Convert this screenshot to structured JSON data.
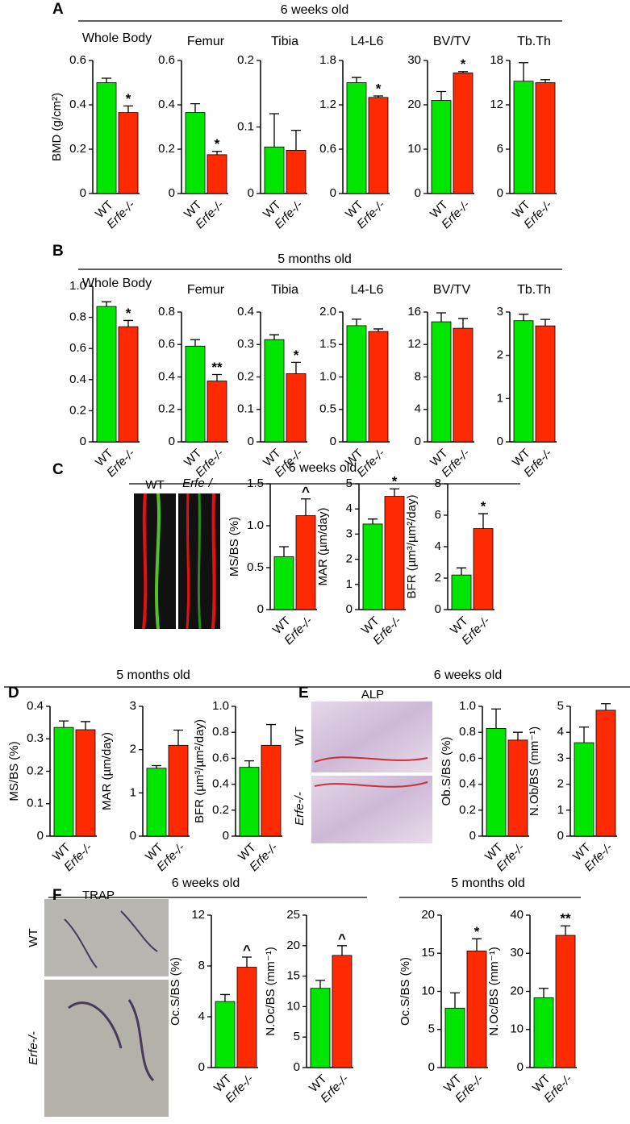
{
  "panels": [
    {
      "label": "A",
      "headings": [
        "6 weeks old"
      ]
    },
    {
      "label": "B",
      "headings": [
        "5 months old"
      ]
    },
    {
      "label": "C",
      "headings": [
        "6 weeks old"
      ]
    },
    {
      "label": "D",
      "headings": [
        "5 months old"
      ]
    },
    {
      "label": "E",
      "headings": [
        "6 weeks old"
      ]
    },
    {
      "label": "F",
      "headings": [
        "6 weeks old",
        "5 months old"
      ]
    }
  ],
  "micrographs": {
    "C": {
      "labels": [
        "WT",
        "Erfe-/-"
      ]
    },
    "E": {
      "title": "ALP",
      "labels": [
        "WT",
        "Erfe-/-"
      ]
    },
    "F": {
      "title": "TRAP",
      "labels": [
        "WT",
        "Erfe-/-"
      ]
    }
  },
  "chart_data": [
    {
      "type": "bar",
      "title": "Whole Body",
      "ylabel": "BMD (g/cm²)",
      "categories": [
        "WT",
        "Erfe-/-"
      ],
      "values": [
        0.5,
        0.365
      ],
      "errors": [
        0.02,
        0.03
      ],
      "annotations": [
        null,
        "*"
      ],
      "colors": [
        "#00e600",
        "#ff2a00"
      ],
      "ylim": [
        0,
        0.6
      ],
      "yticks": [
        0,
        0.2,
        0.4,
        0.6
      ]
    },
    {
      "type": "bar",
      "title": "Femur",
      "categories": [
        "WT",
        "Erfe-/-"
      ],
      "values": [
        0.365,
        0.175
      ],
      "errors": [
        0.04,
        0.015
      ],
      "annotations": [
        null,
        "*"
      ],
      "colors": [
        "#00e600",
        "#ff2a00"
      ],
      "ylim": [
        0,
        0.6
      ],
      "yticks": [
        0,
        0.2,
        0.4,
        0.6
      ]
    },
    {
      "type": "bar",
      "title": "Tibia",
      "categories": [
        "WT",
        "Erfe-/-"
      ],
      "values": [
        0.07,
        0.065
      ],
      "errors": [
        0.05,
        0.03
      ],
      "annotations": [
        null,
        null
      ],
      "colors": [
        "#00e600",
        "#ff2a00"
      ],
      "ylim": [
        0,
        0.2
      ],
      "yticks": [
        0,
        0.1,
        0.2
      ]
    },
    {
      "type": "bar",
      "title": "L4-L6",
      "categories": [
        "WT",
        "Erfe-/-"
      ],
      "values": [
        1.5,
        1.3
      ],
      "errors": [
        0.07,
        0.02
      ],
      "annotations": [
        null,
        "*"
      ],
      "colors": [
        "#00e600",
        "#ff2a00"
      ],
      "ylim": [
        0,
        1.8
      ],
      "yticks": [
        0,
        0.6,
        1.2,
        1.8
      ]
    },
    {
      "type": "bar",
      "title": "BV/TV",
      "categories": [
        "WT",
        "Erfe-/-"
      ],
      "values": [
        21,
        27.2
      ],
      "errors": [
        2,
        0.3
      ],
      "annotations": [
        null,
        "*"
      ],
      "colors": [
        "#00e600",
        "#ff2a00"
      ],
      "ylim": [
        0,
        30
      ],
      "yticks": [
        0,
        10,
        20,
        30
      ]
    },
    {
      "type": "bar",
      "title": "Tb.Th",
      "categories": [
        "WT",
        "Erfe-/-"
      ],
      "values": [
        15.2,
        15
      ],
      "errors": [
        2.5,
        0.4
      ],
      "annotations": [
        null,
        null
      ],
      "colors": [
        "#00e600",
        "#ff2a00"
      ],
      "ylim": [
        0,
        18
      ],
      "yticks": [
        0,
        6,
        12,
        18
      ]
    },
    {
      "type": "bar",
      "title": "Whole Body",
      "categories": [
        "WT",
        "Erfe-/-"
      ],
      "values": [
        0.87,
        0.74
      ],
      "errors": [
        0.03,
        0.04
      ],
      "annotations": [
        null,
        "*"
      ],
      "colors": [
        "#00e600",
        "#ff2a00"
      ],
      "ylim": [
        0,
        1
      ],
      "yticks": [
        0,
        0.2,
        0.4,
        0.6,
        0.8,
        {
          "value": 1,
          "label": "1.0"
        }
      ]
    },
    {
      "type": "bar",
      "title": "Femur",
      "categories": [
        "WT",
        "Erfe-/-"
      ],
      "values": [
        0.59,
        0.375
      ],
      "errors": [
        0.04,
        0.04
      ],
      "annotations": [
        null,
        "**"
      ],
      "colors": [
        "#00e600",
        "#ff2a00"
      ],
      "ylim": [
        0,
        0.8
      ],
      "yticks": [
        0,
        0.2,
        0.4,
        0.6,
        0.8
      ]
    },
    {
      "type": "bar",
      "title": "Tibia",
      "categories": [
        "WT",
        "Erfe-/-"
      ],
      "values": [
        0.315,
        0.21
      ],
      "errors": [
        0.015,
        0.035
      ],
      "annotations": [
        null,
        "*"
      ],
      "colors": [
        "#00e600",
        "#ff2a00"
      ],
      "ylim": [
        0,
        0.4
      ],
      "yticks": [
        0,
        0.1,
        0.2,
        0.3,
        0.4
      ]
    },
    {
      "type": "bar",
      "title": "L4-L6",
      "categories": [
        "WT",
        "Erfe-/-"
      ],
      "values": [
        1.79,
        1.7
      ],
      "errors": [
        0.1,
        0.04
      ],
      "annotations": [
        null,
        null
      ],
      "colors": [
        "#00e600",
        "#ff2a00"
      ],
      "ylim": [
        0,
        2
      ],
      "yticks": [
        0,
        0.5,
        {
          "value": 1,
          "label": "1.0"
        },
        1.5,
        {
          "value": 2,
          "label": "2.0"
        }
      ]
    },
    {
      "type": "bar",
      "title": "BV/TV",
      "categories": [
        "WT",
        "Erfe-/-"
      ],
      "values": [
        14.8,
        14
      ],
      "errors": [
        1.1,
        1.2
      ],
      "annotations": [
        null,
        null
      ],
      "colors": [
        "#00e600",
        "#ff2a00"
      ],
      "ylim": [
        0,
        16
      ],
      "yticks": [
        0,
        4,
        8,
        12,
        16
      ]
    },
    {
      "type": "bar",
      "title": "Tb.Th",
      "categories": [
        "WT",
        "Erfe-/-"
      ],
      "values": [
        2.8,
        2.68
      ],
      "errors": [
        0.15,
        0.15
      ],
      "annotations": [
        null,
        null
      ],
      "colors": [
        "#00e600",
        "#ff2a00"
      ],
      "ylim": [
        0,
        3
      ],
      "yticks": [
        0,
        1,
        2,
        3
      ]
    },
    {
      "type": "bar",
      "ylabel": "MS/BS (%)",
      "categories": [
        "WT",
        "Erfe-/-"
      ],
      "values": [
        0.63,
        1.12
      ],
      "errors": [
        0.12,
        0.2
      ],
      "annotations": [
        null,
        "^"
      ],
      "colors": [
        "#00e600",
        "#ff2a00"
      ],
      "ylim": [
        0,
        1.5
      ],
      "yticks": [
        0,
        0.5,
        {
          "value": 1,
          "label": "1.0"
        },
        1.5
      ]
    },
    {
      "type": "bar",
      "ylabel": "MAR (µm/day)",
      "categories": [
        "WT",
        "Erfe-/-"
      ],
      "values": [
        3.4,
        4.5
      ],
      "errors": [
        0.2,
        0.3
      ],
      "annotations": [
        null,
        "*"
      ],
      "colors": [
        "#00e600",
        "#ff2a00"
      ],
      "ylim": [
        0,
        5
      ],
      "yticks": [
        0,
        1,
        2,
        3,
        4,
        5
      ]
    },
    {
      "type": "bar",
      "ylabel": "BFR (µm³/µm²/day)",
      "categories": [
        "WT",
        "Erfe-/-"
      ],
      "values": [
        2.2,
        5.15
      ],
      "errors": [
        0.45,
        0.95
      ],
      "annotations": [
        null,
        "*"
      ],
      "colors": [
        "#00e600",
        "#ff2a00"
      ],
      "ylim": [
        0,
        8
      ],
      "yticks": [
        0,
        2,
        4,
        6,
        8
      ]
    },
    {
      "type": "bar",
      "ylabel": "MS/BS (%)",
      "categories": [
        "WT",
        "Erfe-/-"
      ],
      "values": [
        0.335,
        0.328
      ],
      "errors": [
        0.02,
        0.025
      ],
      "annotations": [
        null,
        null
      ],
      "colors": [
        "#00e600",
        "#ff2a00"
      ],
      "ylim": [
        0,
        0.4
      ],
      "yticks": [
        0,
        0.1,
        0.2,
        0.3,
        0.4
      ]
    },
    {
      "type": "bar",
      "ylabel": "MAR (µm/day)",
      "categories": [
        "WT",
        "Erfe-/-"
      ],
      "values": [
        1.57,
        2.1
      ],
      "errors": [
        0.06,
        0.35
      ],
      "annotations": [
        null,
        null
      ],
      "colors": [
        "#00e600",
        "#ff2a00"
      ],
      "ylim": [
        0,
        3
      ],
      "yticks": [
        0,
        1,
        2,
        3
      ]
    },
    {
      "type": "bar",
      "ylabel": "BFR (µm³/µm²/day)",
      "categories": [
        "WT",
        "Erfe-/-"
      ],
      "values": [
        0.53,
        0.7
      ],
      "errors": [
        0.05,
        0.16
      ],
      "annotations": [
        null,
        null
      ],
      "colors": [
        "#00e600",
        "#ff2a00"
      ],
      "ylim": [
        0,
        1
      ],
      "yticks": [
        0,
        0.2,
        0.4,
        0.6,
        0.8,
        {
          "value": 1,
          "label": "1.0"
        }
      ]
    },
    {
      "type": "bar",
      "ylabel": "Ob.S/BS (%)",
      "categories": [
        "WT",
        "Erfe-/-"
      ],
      "values": [
        0.83,
        0.74
      ],
      "errors": [
        0.15,
        0.06
      ],
      "annotations": [
        null,
        null
      ],
      "colors": [
        "#00e600",
        "#ff2a00"
      ],
      "ylim": [
        0,
        1
      ],
      "yticks": [
        0,
        0.2,
        0.4,
        0.6,
        0.8,
        {
          "value": 1,
          "label": "1.0"
        }
      ]
    },
    {
      "type": "bar",
      "ylabel": "N.Ob/BS (mm⁻¹)",
      "categories": [
        "WT",
        "Erfe-/-"
      ],
      "values": [
        3.6,
        4.85
      ],
      "errors": [
        0.6,
        0.25
      ],
      "annotations": [
        null,
        null
      ],
      "colors": [
        "#00e600",
        "#ff2a00"
      ],
      "ylim": [
        0,
        5
      ],
      "yticks": [
        0,
        1,
        2,
        3,
        4,
        5
      ]
    },
    {
      "type": "bar",
      "ylabel": "Oc.S/BS (%)",
      "categories": [
        "WT",
        "Erfe-/-"
      ],
      "values": [
        5.2,
        7.9
      ],
      "errors": [
        0.55,
        0.8
      ],
      "annotations": [
        null,
        "^"
      ],
      "colors": [
        "#00e600",
        "#ff2a00"
      ],
      "ylim": [
        0,
        12
      ],
      "yticks": [
        0,
        4,
        8,
        12
      ]
    },
    {
      "type": "bar",
      "ylabel": "N.Oc/BS (mm⁻¹)",
      "categories": [
        "WT",
        "Erfe-/-"
      ],
      "values": [
        13,
        18.4
      ],
      "errors": [
        1.3,
        1.6
      ],
      "annotations": [
        null,
        "^"
      ],
      "colors": [
        "#00e600",
        "#ff2a00"
      ],
      "ylim": [
        0,
        25
      ],
      "yticks": [
        0,
        5,
        10,
        15,
        20,
        25
      ]
    },
    {
      "type": "bar",
      "ylabel": "Oc.S/BS (%)",
      "categories": [
        "WT",
        "Erfe-/-"
      ],
      "values": [
        7.8,
        15.3
      ],
      "errors": [
        2,
        1.6
      ],
      "annotations": [
        null,
        "*"
      ],
      "colors": [
        "#00e600",
        "#ff2a00"
      ],
      "ylim": [
        0,
        20
      ],
      "yticks": [
        0,
        5,
        10,
        15,
        20
      ]
    },
    {
      "type": "bar",
      "ylabel": "N.Oc/BS (mm⁻¹)",
      "categories": [
        "WT",
        "Erfe-/-"
      ],
      "values": [
        18.3,
        34.7
      ],
      "errors": [
        2.5,
        2.5
      ],
      "annotations": [
        null,
        "**"
      ],
      "colors": [
        "#00e600",
        "#ff2a00"
      ],
      "ylim": [
        0,
        40
      ],
      "yticks": [
        0,
        10,
        20,
        30,
        40
      ]
    }
  ]
}
